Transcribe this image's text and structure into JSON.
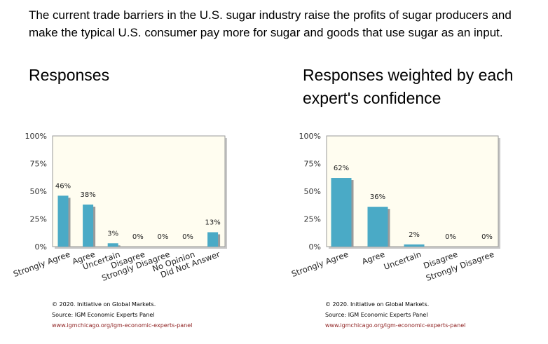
{
  "question": "The current trade barriers in the U.S. sugar industry raise the profits of sugar producers and make the typical U.S. consumer pay more for sugar and goods that use sugar as an input.",
  "headings": {
    "left": "Responses",
    "right": "Responses weighted by each expert's confidence"
  },
  "footer": {
    "copyright": "© 2020. Initiative on Global Markets.",
    "source": "Source: IGM Economic Experts Panel",
    "url": "www.igmchicago.org/igm-economic-experts-panel"
  },
  "colors": {
    "bar": "#4aaac6",
    "plot_bg": "#fffdf0"
  },
  "chart_data": [
    {
      "type": "bar",
      "categories": [
        "Strongly Agree",
        "Agree",
        "Uncertain",
        "Disagree",
        "Strongly Disagree",
        "No Opinion",
        "Did Not Answer"
      ],
      "values": [
        46,
        38,
        3,
        0,
        0,
        0,
        13
      ],
      "data_labels": [
        "46%",
        "38%",
        "3%",
        "0%",
        "0%",
        "0%",
        "13%"
      ],
      "y_ticks": [
        "0%",
        "25%",
        "50%",
        "75%",
        "100%"
      ],
      "ylim": [
        0,
        100
      ],
      "grid": false
    },
    {
      "type": "bar",
      "categories": [
        "Strongly Agree",
        "Agree",
        "Uncertain",
        "Disagree",
        "Strongly Disagree"
      ],
      "values": [
        62,
        36,
        2,
        0,
        0
      ],
      "data_labels": [
        "62%",
        "36%",
        "2%",
        "0%",
        "0%"
      ],
      "y_ticks": [
        "0%",
        "25%",
        "50%",
        "75%",
        "100%"
      ],
      "ylim": [
        0,
        100
      ],
      "grid": false
    }
  ]
}
